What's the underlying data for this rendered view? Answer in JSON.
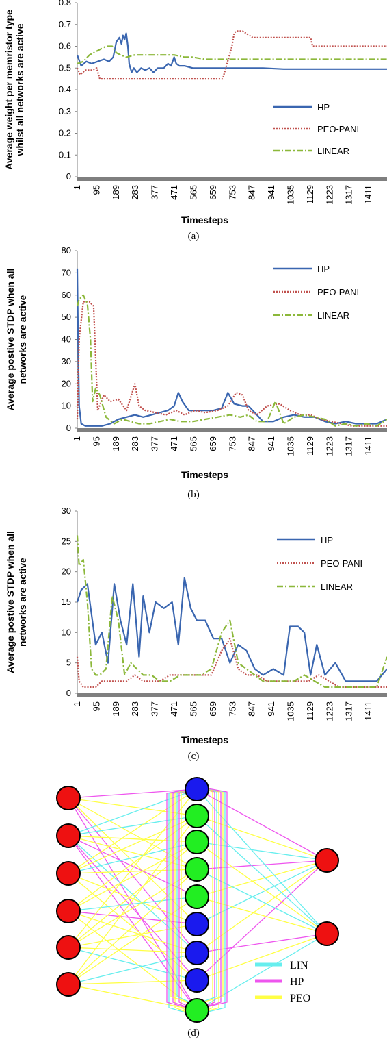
{
  "chart_data": [
    {
      "id": "a",
      "type": "line",
      "caption": "(a)",
      "xlabel": "Timesteps",
      "ylabel_lines": [
        "Average weight per memristor type",
        "whilst all networks are active"
      ],
      "x_ticks": [
        1,
        95,
        189,
        283,
        377,
        471,
        565,
        659,
        753,
        847,
        941,
        1035,
        1129,
        1223,
        1317,
        1411
      ],
      "x_range": [
        1,
        1500
      ],
      "ylim": [
        0,
        0.8
      ],
      "y_ticks": [
        0,
        0.1,
        0.2,
        0.3,
        0.4,
        0.5,
        0.6,
        0.7,
        0.8
      ],
      "legend_position": "bottom-right",
      "series": [
        {
          "name": "HP",
          "color": "#3a66b0",
          "dash": "solid",
          "x": [
            1,
            20,
            45,
            70,
            100,
            130,
            155,
            175,
            190,
            205,
            215,
            222,
            230,
            238,
            246,
            252,
            258,
            264,
            275,
            290,
            310,
            330,
            350,
            370,
            390,
            420,
            440,
            455,
            470,
            480,
            495,
            520,
            560,
            620,
            700,
            800,
            900,
            1000,
            1100,
            1200,
            1300,
            1400,
            1500
          ],
          "y": [
            0.56,
            0.51,
            0.53,
            0.52,
            0.53,
            0.54,
            0.53,
            0.55,
            0.62,
            0.64,
            0.61,
            0.65,
            0.63,
            0.66,
            0.6,
            0.52,
            0.5,
            0.48,
            0.5,
            0.48,
            0.5,
            0.49,
            0.5,
            0.48,
            0.5,
            0.5,
            0.52,
            0.51,
            0.55,
            0.52,
            0.51,
            0.51,
            0.5,
            0.5,
            0.5,
            0.5,
            0.5,
            0.495,
            0.495,
            0.495,
            0.495,
            0.495,
            0.495
          ]
        },
        {
          "name": "PEO-PANI",
          "color": "#c0504d",
          "dash": "dotted",
          "x": [
            1,
            15,
            40,
            70,
            95,
            110,
            140,
            200,
            300,
            400,
            500,
            600,
            680,
            700,
            705,
            750,
            760,
            770,
            800,
            850,
            900,
            1000,
            1100,
            1130,
            1140,
            1200,
            1300,
            1400,
            1500
          ],
          "y": [
            0.5,
            0.47,
            0.49,
            0.49,
            0.5,
            0.45,
            0.45,
            0.45,
            0.45,
            0.45,
            0.45,
            0.45,
            0.45,
            0.45,
            0.45,
            0.6,
            0.66,
            0.67,
            0.67,
            0.64,
            0.64,
            0.64,
            0.64,
            0.64,
            0.6,
            0.6,
            0.6,
            0.6,
            0.6
          ]
        },
        {
          "name": "LINEAR",
          "color": "#8cb83a",
          "dash": "dashdot",
          "x": [
            1,
            30,
            60,
            100,
            140,
            170,
            190,
            210,
            240,
            280,
            320,
            360,
            420,
            470,
            520,
            560,
            620,
            700,
            800,
            900,
            1000,
            1100,
            1200,
            1300,
            1400,
            1500
          ],
          "y": [
            0.52,
            0.53,
            0.56,
            0.58,
            0.6,
            0.6,
            0.57,
            0.56,
            0.55,
            0.56,
            0.56,
            0.56,
            0.56,
            0.56,
            0.55,
            0.55,
            0.54,
            0.54,
            0.54,
            0.54,
            0.54,
            0.54,
            0.54,
            0.54,
            0.54,
            0.54
          ]
        }
      ]
    },
    {
      "id": "b",
      "type": "line",
      "caption": "(b)",
      "xlabel": "Timesteps",
      "ylabel_lines": [
        "Average postive STDP when all",
        "networks are active"
      ],
      "x_ticks": [
        1,
        95,
        189,
        283,
        377,
        471,
        565,
        659,
        753,
        847,
        941,
        1035,
        1129,
        1223,
        1317,
        1411
      ],
      "x_range": [
        1,
        1500
      ],
      "ylim": [
        0,
        80
      ],
      "y_ticks": [
        0,
        10,
        20,
        30,
        40,
        50,
        60,
        70,
        80
      ],
      "legend_position": "top-right",
      "series": [
        {
          "name": "HP",
          "color": "#3a66b0",
          "dash": "solid",
          "x": [
            1,
            5,
            10,
            20,
            40,
            80,
            120,
            160,
            200,
            240,
            280,
            320,
            360,
            400,
            440,
            470,
            490,
            510,
            540,
            580,
            620,
            660,
            700,
            730,
            760,
            800,
            830,
            860,
            900,
            950,
            1000,
            1050,
            1100,
            1150,
            1200,
            1250,
            1300,
            1350,
            1400,
            1450,
            1500
          ],
          "y": [
            72,
            40,
            10,
            2,
            1,
            1,
            1,
            2,
            4,
            5,
            6,
            5,
            6,
            7,
            8,
            10,
            16,
            12,
            8,
            8,
            8,
            8,
            9,
            16,
            11,
            10,
            10,
            7,
            3,
            3,
            5,
            6,
            5,
            5,
            3,
            2,
            3,
            2,
            2,
            2,
            4
          ]
        },
        {
          "name": "PEO-PANI",
          "color": "#c0504d",
          "dash": "dotted",
          "x": [
            1,
            10,
            30,
            60,
            80,
            100,
            130,
            160,
            200,
            240,
            280,
            300,
            330,
            380,
            430,
            480,
            520,
            570,
            620,
            680,
            730,
            770,
            800,
            830,
            870,
            920,
            980,
            1030,
            1080,
            1130,
            1180,
            1230,
            1280,
            1330,
            1380,
            1430,
            1500
          ],
          "y": [
            4,
            40,
            57,
            57,
            55,
            8,
            15,
            12,
            13,
            8,
            20,
            10,
            8,
            7,
            6,
            8,
            6,
            8,
            7,
            8,
            10,
            16,
            15,
            8,
            6,
            10,
            11,
            8,
            6,
            6,
            4,
            3,
            2,
            1,
            1,
            1,
            1
          ]
        },
        {
          "name": "LINEAR",
          "color": "#8cb83a",
          "dash": "dashdot",
          "x": [
            1,
            10,
            30,
            50,
            65,
            75,
            90,
            110,
            140,
            180,
            220,
            260,
            300,
            350,
            400,
            450,
            500,
            560,
            620,
            680,
            740,
            790,
            830,
            870,
            920,
            960,
            1000,
            1050,
            1100,
            1150,
            1200,
            1250,
            1300,
            1350,
            1400,
            1450,
            1500
          ],
          "y": [
            55,
            58,
            60,
            56,
            40,
            12,
            18,
            15,
            5,
            2,
            4,
            3,
            2,
            2,
            3,
            4,
            3,
            3,
            4,
            5,
            6,
            5,
            6,
            3,
            3,
            12,
            2,
            5,
            6,
            5,
            4,
            1,
            2,
            1,
            2,
            1,
            4
          ]
        }
      ]
    },
    {
      "id": "c",
      "type": "line",
      "caption": "(c)",
      "xlabel": "Timesteps",
      "ylabel_lines": [
        "Average postive STDP when all",
        "networks are active"
      ],
      "x_ticks": [
        1,
        95,
        189,
        283,
        377,
        471,
        565,
        659,
        753,
        847,
        941,
        1035,
        1129,
        1223,
        1317,
        1411
      ],
      "x_range": [
        1,
        1500
      ],
      "ylim": [
        0,
        30
      ],
      "y_ticks": [
        0,
        5,
        10,
        15,
        20,
        25,
        30
      ],
      "legend_position": "top-right",
      "series": [
        {
          "name": "HP",
          "color": "#3a66b0",
          "dash": "solid",
          "x": [
            1,
            20,
            50,
            90,
            120,
            150,
            180,
            210,
            240,
            270,
            300,
            320,
            350,
            380,
            420,
            460,
            490,
            520,
            550,
            580,
            620,
            660,
            700,
            740,
            780,
            820,
            860,
            900,
            950,
            1000,
            1030,
            1070,
            1100,
            1130,
            1160,
            1200,
            1250,
            1300,
            1350,
            1400,
            1450,
            1500
          ],
          "y": [
            15,
            17,
            18,
            8,
            10,
            5,
            18,
            12,
            8,
            18,
            6,
            16,
            10,
            15,
            14,
            15,
            8,
            19,
            14,
            12,
            12,
            9,
            9,
            5,
            8,
            7,
            4,
            3,
            4,
            3,
            11,
            11,
            10,
            3,
            8,
            3,
            5,
            2,
            2,
            2,
            2,
            4
          ]
        },
        {
          "name": "PEO-PANI",
          "color": "#c0504d",
          "dash": "dotted",
          "x": [
            1,
            10,
            30,
            60,
            90,
            120,
            160,
            200,
            240,
            280,
            320,
            360,
            400,
            450,
            500,
            550,
            600,
            650,
            700,
            740,
            780,
            820,
            870,
            920,
            970,
            1020,
            1070,
            1120,
            1170,
            1220,
            1270,
            1320,
            1370,
            1420,
            1500
          ],
          "y": [
            6,
            2,
            1,
            1,
            1,
            2,
            2,
            2,
            2,
            3,
            2,
            2,
            2,
            3,
            3,
            3,
            3,
            3,
            7,
            9,
            4,
            3,
            3,
            2,
            2,
            2,
            2,
            2,
            3,
            2,
            1,
            1,
            1,
            1,
            1
          ]
        },
        {
          "name": "LINEAR",
          "color": "#8cb83a",
          "dash": "dashdot",
          "x": [
            1,
            10,
            30,
            50,
            70,
            90,
            110,
            140,
            170,
            200,
            230,
            260,
            290,
            320,
            360,
            400,
            450,
            500,
            550,
            600,
            650,
            700,
            740,
            780,
            820,
            860,
            900,
            950,
            1000,
            1050,
            1100,
            1150,
            1200,
            1250,
            1300,
            1350,
            1400,
            1450,
            1500
          ],
          "y": [
            26,
            21,
            22,
            15,
            4,
            3,
            3,
            4,
            16,
            12,
            3,
            5,
            4,
            3,
            3,
            2,
            2,
            3,
            3,
            3,
            4,
            10,
            12,
            5,
            4,
            3,
            2,
            2,
            2,
            2,
            3,
            2,
            1,
            1,
            1,
            1,
            1,
            1,
            6
          ]
        }
      ]
    }
  ],
  "network": {
    "caption": "(d)",
    "input_color": "#ee1111",
    "hidden_colors": [
      "#1a1aee",
      "#22ee22",
      "#22ee22",
      "#22ee22",
      "#22ee22",
      "#1a1aee",
      "#1a1aee",
      "#1a1aee",
      "#22ee22"
    ],
    "output_color": "#ee1111",
    "legend": [
      {
        "label": "LIN",
        "color": "#66eeee"
      },
      {
        "label": "HP",
        "color": "#ee55ee"
      },
      {
        "label": "PEO",
        "color": "#ffff44"
      }
    ]
  }
}
